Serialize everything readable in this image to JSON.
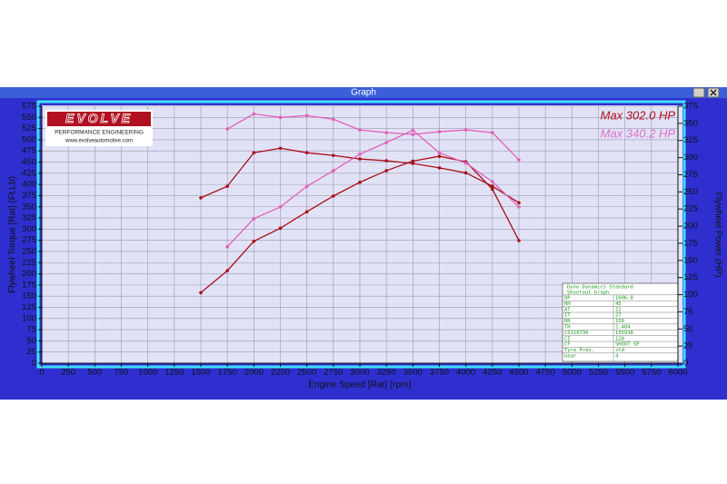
{
  "window": {
    "title": "Graph"
  },
  "logo": {
    "brand": "EVOLVE",
    "tagline": "PERFORMANCE ENGINEERING",
    "url": "www.evolveautomotive.com"
  },
  "info_table": {
    "title": [
      "Dyno Dynamics Standard",
      "Shootout Graph"
    ],
    "rows": [
      [
        "BP",
        "1006.8"
      ],
      [
        "RH",
        "45"
      ],
      [
        "AT",
        "22"
      ],
      [
        "IT",
        "27"
      ],
      [
        "RR",
        "150"
      ],
      [
        "TH",
        "2.484"
      ],
      [
        "CS110730",
        "135938"
      ],
      [
        "CI",
        "128"
      ],
      [
        "CF",
        "SHOOT SP"
      ],
      [
        "Tyre Pres.",
        "std"
      ],
      [
        "Gear",
        "4"
      ]
    ]
  },
  "chart_data": {
    "type": "line",
    "xlabel": "Engine Speed [Rat] (rpm)",
    "ylabel": "Flywheel Torque [Rat] (Ft.Lb)",
    "y2label": "Flywheel Power (HP)",
    "x": [
      1500,
      1750,
      2000,
      2250,
      2500,
      2750,
      3000,
      3250,
      3500,
      3750,
      4000,
      4250,
      4500
    ],
    "xlim": [
      0,
      6000
    ],
    "xticks": [
      0,
      250,
      500,
      750,
      1000,
      1250,
      1500,
      1750,
      2000,
      2250,
      2500,
      2750,
      3000,
      3250,
      3500,
      3750,
      4000,
      4250,
      4500,
      4750,
      5000,
      5250,
      5500,
      5750,
      6000
    ],
    "ylim": [
      0,
      575
    ],
    "yticks": [
      0,
      25,
      50,
      75,
      100,
      125,
      150,
      175,
      200,
      225,
      250,
      275,
      300,
      325,
      350,
      375,
      400,
      425,
      450,
      475,
      500,
      525,
      550,
      575
    ],
    "y2lim": [
      0,
      375
    ],
    "y2ticks": [
      0,
      25,
      50,
      75,
      100,
      125,
      150,
      175,
      200,
      225,
      250,
      275,
      300,
      325,
      350,
      375
    ],
    "grid": true,
    "annotations": [
      {
        "text": "Max 302.0 HP",
        "color": "#b0101e"
      },
      {
        "text": "Max 340.2 HP",
        "color": "#e070c8"
      }
    ],
    "series": [
      {
        "color": "#a8101a",
        "values": [
          370,
          396,
          471,
          481,
          471,
          465,
          457,
          453,
          447,
          437,
          426,
          396,
          359
        ]
      },
      {
        "color": "#a8101a",
        "axis": "y2",
        "values": [
          103,
          135,
          178,
          197,
          221,
          244,
          264,
          281,
          295,
          302,
          294,
          254,
          179
        ]
      },
      {
        "color": "#e060b8",
        "values": [
          null,
          524,
          558,
          550,
          554,
          546,
          522,
          516,
          512,
          518,
          522,
          516,
          455
        ]
      },
      {
        "color": "#e060b8",
        "axis": "y2",
        "values": [
          null,
          170,
          211,
          228,
          258,
          281,
          305,
          322,
          340,
          307,
          292,
          265,
          228
        ]
      }
    ]
  }
}
